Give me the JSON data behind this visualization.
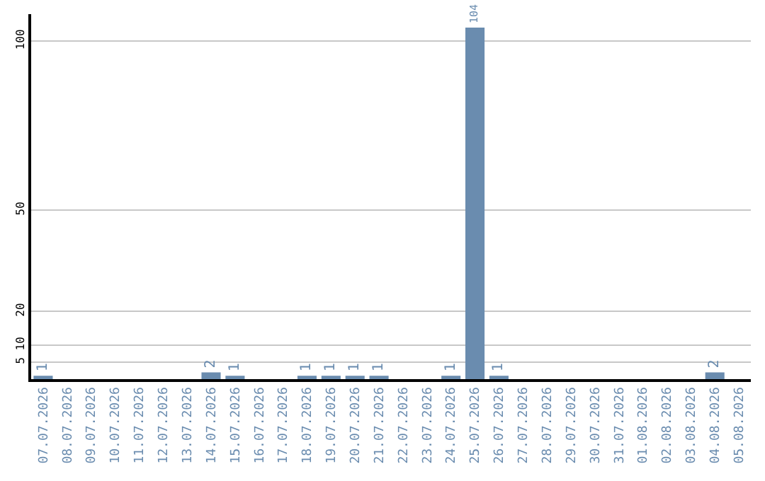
{
  "chart_data": {
    "type": "bar",
    "categories": [
      "07.07.2026",
      "08.07.2026",
      "09.07.2026",
      "10.07.2026",
      "11.07.2026",
      "12.07.2026",
      "13.07.2026",
      "14.07.2026",
      "15.07.2026",
      "16.07.2026",
      "17.07.2026",
      "18.07.2026",
      "19.07.2026",
      "20.07.2026",
      "21.07.2026",
      "22.07.2026",
      "23.07.2026",
      "24.07.2026",
      "25.07.2026",
      "26.07.2026",
      "27.07.2026",
      "28.07.2026",
      "29.07.2026",
      "30.07.2026",
      "31.07.2026",
      "01.08.2026",
      "02.08.2026",
      "03.08.2026",
      "04.08.2026",
      "05.08.2026"
    ],
    "values": [
      1,
      null,
      null,
      null,
      null,
      null,
      null,
      2,
      1,
      null,
      null,
      1,
      1,
      1,
      1,
      null,
      null,
      1,
      104,
      1,
      null,
      null,
      null,
      null,
      null,
      null,
      null,
      null,
      2,
      null
    ],
    "color": "#6a8caf",
    "ylim": [
      0,
      108
    ],
    "yticks": [
      5,
      10,
      20,
      50,
      100
    ],
    "grid": "y",
    "data_labels": true
  }
}
